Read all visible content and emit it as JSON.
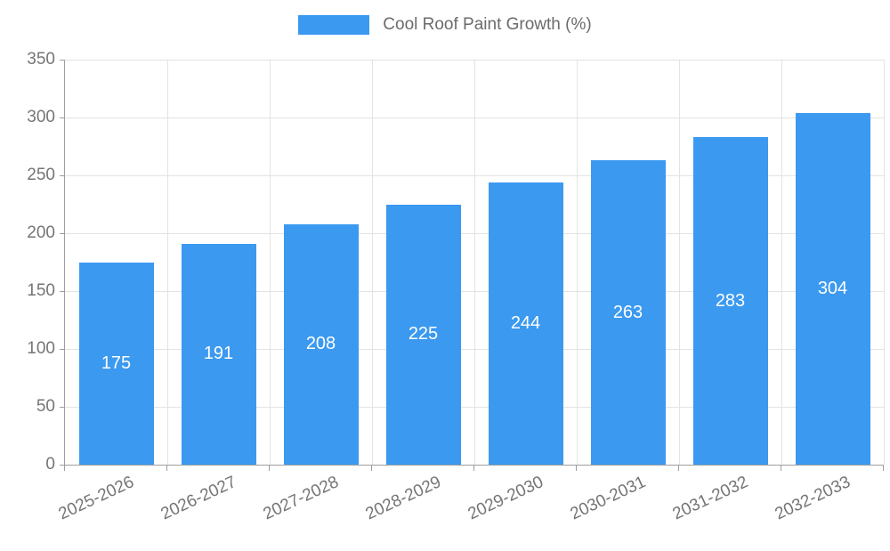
{
  "chart_data": {
    "type": "bar",
    "title": "Cool Roof Paint Growth (%)",
    "categories": [
      "2025-2026",
      "2026-2027",
      "2027-2028",
      "2028-2029",
      "2029-2030",
      "2030-2031",
      "2031-2032",
      "2032-2033"
    ],
    "values": [
      175,
      191,
      208,
      225,
      244,
      263,
      283,
      304
    ],
    "xlabel": "",
    "ylabel": "",
    "ylim": [
      0,
      350
    ],
    "y_ticks": [
      0,
      50,
      100,
      150,
      200,
      250,
      300,
      350
    ],
    "grid": "on",
    "legend_position": "top-center",
    "bar_labels_inside": true
  },
  "colors": {
    "bar": "#3b99f0",
    "value_label": "#ffffff",
    "grid": "#e3e3e3",
    "axis": "#9e9e9e",
    "axis_label": "#757575",
    "legend_text": "#6b6b6b",
    "background": "#ffffff"
  }
}
